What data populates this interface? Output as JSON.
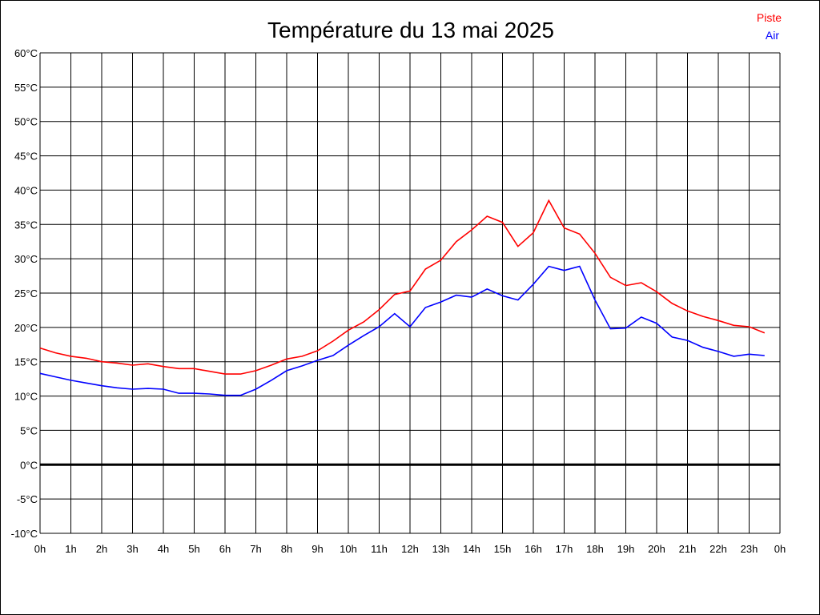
{
  "chart_data": {
    "type": "line",
    "title": "Température du 13 mai 2025",
    "xlabel": "",
    "ylabel": "",
    "x_tick_labels": [
      "0h",
      "1h",
      "2h",
      "3h",
      "4h",
      "5h",
      "6h",
      "7h",
      "8h",
      "9h",
      "10h",
      "11h",
      "12h",
      "13h",
      "14h",
      "15h",
      "16h",
      "17h",
      "18h",
      "19h",
      "20h",
      "21h",
      "22h",
      "23h",
      "0h"
    ],
    "y_tick_labels": [
      "60°C",
      "55°C",
      "50°C",
      "45°C",
      "40°C",
      "35°C",
      "30°C",
      "25°C",
      "20°C",
      "15°C",
      "10°C",
      "5°C",
      "0°C",
      "-5°C",
      "-10°C"
    ],
    "xlim": [
      0,
      24
    ],
    "ylim": [
      -10,
      60
    ],
    "grid": true,
    "legend": "top-right",
    "x": [
      0,
      0.5,
      1,
      1.5,
      2,
      2.5,
      3,
      3.5,
      4,
      4.5,
      5,
      5.5,
      6,
      6.5,
      7,
      7.5,
      8,
      8.5,
      9,
      9.5,
      10,
      10.5,
      11,
      11.5,
      12,
      12.5,
      13,
      13.5,
      14,
      14.5,
      15,
      15.5,
      16,
      16.5,
      17,
      17.5,
      18,
      18.5,
      19,
      19.5,
      20,
      20.5,
      21,
      21.5,
      22,
      22.5,
      23,
      23.5
    ],
    "series": [
      {
        "name": "Piste",
        "color": "#ff0000",
        "values": [
          17.0,
          16.3,
          15.8,
          15.5,
          15.0,
          14.8,
          14.5,
          14.7,
          14.3,
          14.0,
          14.0,
          13.6,
          13.2,
          13.2,
          13.7,
          14.5,
          15.4,
          15.8,
          16.6,
          18.0,
          19.6,
          20.8,
          22.6,
          24.8,
          25.3,
          28.5,
          29.8,
          32.5,
          34.2,
          36.2,
          35.3,
          31.8,
          33.8,
          38.5,
          34.5,
          33.6,
          30.8,
          27.3,
          26.1,
          26.5,
          25.2,
          23.5,
          22.4,
          21.6,
          21.0,
          20.3,
          20.1,
          19.2
        ]
      },
      {
        "name": "Air",
        "color": "#0000ff",
        "values": [
          13.3,
          12.8,
          12.3,
          11.9,
          11.5,
          11.2,
          11.0,
          11.1,
          11.0,
          10.4,
          10.4,
          10.3,
          10.1,
          10.1,
          11.0,
          12.3,
          13.7,
          14.4,
          15.2,
          15.9,
          17.4,
          18.8,
          20.1,
          22.0,
          20.1,
          22.9,
          23.7,
          24.7,
          24.4,
          25.6,
          24.6,
          24.0,
          26.3,
          28.9,
          28.3,
          28.9,
          24.0,
          19.8,
          19.9,
          21.5,
          20.6,
          18.6,
          18.1,
          17.1,
          16.5,
          15.8,
          16.1,
          15.9
        ]
      }
    ]
  }
}
